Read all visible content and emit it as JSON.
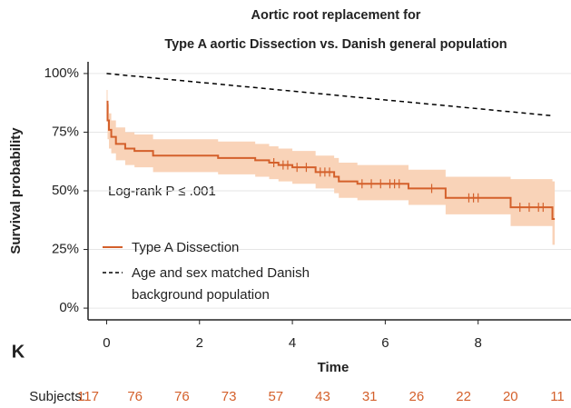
{
  "chart_data": {
    "type": "km",
    "title": [
      "Aortic root replacement for",
      "Type A aortic Dissection vs. Danish general population"
    ],
    "panel_label": "K",
    "x_label": "Time",
    "y_label": "Survival probability",
    "annotation": "Log-rank P ≤ .001",
    "xlim": [
      -0.4,
      10
    ],
    "ylim": [
      -5,
      105
    ],
    "xticks": [
      0,
      2,
      4,
      6,
      8
    ],
    "yticks": [
      {
        "value": 0,
        "label": "0%"
      },
      {
        "value": 25,
        "label": "25%"
      },
      {
        "value": 50,
        "label": "50%"
      },
      {
        "value": 75,
        "label": "75%"
      },
      {
        "value": 100,
        "label": "100%"
      }
    ],
    "grid": true,
    "series": [
      {
        "name": "Type A Dissection",
        "color": "#d4602b",
        "band_color": "#f9d3b8",
        "x": [
          0,
          0.02,
          0.05,
          0.1,
          0.2,
          0.4,
          0.6,
          1.0,
          2.4,
          3.2,
          3.5,
          3.7,
          4.0,
          4.5,
          4.9,
          5.0,
          5.4,
          6.5,
          7.3,
          8.7,
          9.6
        ],
        "values": [
          88,
          80,
          76,
          73,
          70,
          68,
          67,
          65,
          64,
          63,
          62,
          61,
          60,
          58,
          56,
          54,
          53,
          51,
          47,
          43,
          38
        ],
        "ci_upper": [
          93,
          87,
          83,
          80,
          77,
          75,
          74,
          72,
          71,
          70,
          69,
          68,
          67,
          65,
          64,
          62,
          61,
          59,
          56,
          55,
          54
        ],
        "ci_lower": [
          82,
          72,
          68,
          66,
          63,
          61,
          60,
          58,
          57,
          56,
          55,
          54,
          53,
          51,
          49,
          47,
          46,
          44,
          40,
          35,
          27
        ],
        "censored": [
          3.6,
          3.8,
          3.9,
          4.1,
          4.3,
          4.6,
          4.7,
          4.8,
          5.5,
          5.7,
          5.9,
          6.1,
          6.2,
          6.3,
          7.0,
          7.8,
          7.9,
          8.0,
          8.9,
          9.1,
          9.3,
          9.4
        ]
      },
      {
        "name": "Age and sex matched Danish background population",
        "color": "#000000",
        "x": [
          0,
          9.6
        ],
        "values": [
          100,
          82
        ]
      }
    ],
    "risk_table": {
      "label": "Subjects:",
      "color": "#d4602b",
      "values": [
        117,
        76,
        76,
        73,
        57,
        43,
        31,
        26,
        22,
        20,
        11
      ]
    }
  }
}
